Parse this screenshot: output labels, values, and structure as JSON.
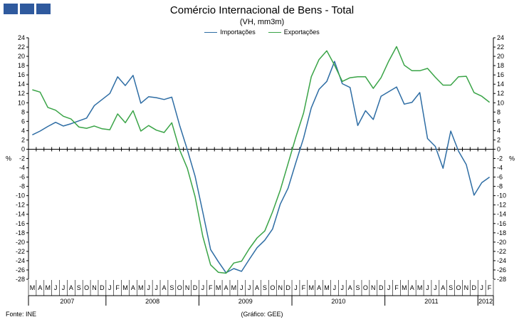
{
  "header": {
    "title": "Comércio Internacional de Bens - Total",
    "subtitle": "(VH, mm3m)"
  },
  "footer": {
    "source": "Fonte: INE",
    "credit": "(Gráfico: GEE)"
  },
  "colors": {
    "importacoes": "#2e6da4",
    "exportacoes": "#3aa447",
    "logo": "#2f5a9e"
  },
  "chart_data": {
    "type": "line",
    "title": "Comércio Internacional de Bens - Total",
    "subtitle": "(VH, mm3m)",
    "ylabel": "%",
    "ylim": [
      -28,
      24
    ],
    "yticks": [
      24,
      22,
      20,
      18,
      16,
      14,
      12,
      10,
      8,
      6,
      4,
      2,
      0,
      -2,
      -4,
      -6,
      -8,
      -10,
      -12,
      -14,
      -16,
      -18,
      -20,
      -22,
      -24,
      -26,
      -28
    ],
    "grid": false,
    "legend_position": "top-center",
    "month_labels": [
      "M",
      "A",
      "M",
      "J",
      "J",
      "A",
      "S",
      "O",
      "N",
      "D",
      "J",
      "F",
      "M",
      "A",
      "M",
      "J",
      "J",
      "A",
      "S",
      "O",
      "N",
      "D",
      "J",
      "F",
      "M",
      "A",
      "M",
      "J",
      "J",
      "A",
      "S",
      "O",
      "N",
      "D",
      "J",
      "F",
      "M",
      "A",
      "M",
      "J",
      "J",
      "A",
      "S",
      "O",
      "N",
      "D",
      "J",
      "F",
      "M",
      "A",
      "M",
      "J",
      "J",
      "A",
      "S",
      "O",
      "N",
      "D",
      "J",
      "F"
    ],
    "years": [
      {
        "label": "2007",
        "start": 0,
        "end": 9
      },
      {
        "label": "2008",
        "start": 10,
        "end": 21
      },
      {
        "label": "2009",
        "start": 22,
        "end": 33
      },
      {
        "label": "2010",
        "start": 34,
        "end": 45
      },
      {
        "label": "2011",
        "start": 46,
        "end": 57
      },
      {
        "label": "2012",
        "start": 58,
        "end": 59
      }
    ],
    "series": [
      {
        "name": "Importações",
        "color": "#2e6da4",
        "values": [
          3.1,
          3.9,
          4.9,
          5.8,
          5.0,
          5.5,
          6.1,
          6.7,
          9.4,
          10.7,
          12.0,
          15.6,
          13.7,
          15.9,
          9.9,
          11.3,
          11.1,
          10.7,
          11.2,
          5.2,
          -0.1,
          -5.8,
          -13.6,
          -21.6,
          -24.2,
          -26.6,
          -25.7,
          -26.3,
          -23.7,
          -21.2,
          -19.6,
          -17.2,
          -11.8,
          -8.4,
          -2.9,
          2.4,
          8.9,
          12.9,
          14.6,
          18.9,
          14.1,
          13.3,
          5.1,
          8.3,
          6.4,
          11.4,
          12.4,
          13.4,
          9.7,
          10.1,
          12.2,
          2.3,
          0.6,
          -4.1,
          3.9,
          -0.4,
          -3.3,
          -9.9,
          -7.2,
          -6.0
        ]
      },
      {
        "name": "Exportações",
        "color": "#3aa447",
        "values": [
          12.8,
          12.3,
          9.0,
          8.4,
          7.1,
          6.5,
          4.8,
          4.5,
          5.0,
          4.4,
          4.2,
          7.6,
          5.7,
          8.3,
          3.9,
          5.1,
          4.1,
          3.6,
          5.7,
          -0.1,
          -4.1,
          -10.2,
          -18.8,
          -24.9,
          -26.5,
          -26.7,
          -24.5,
          -24.1,
          -21.4,
          -19.1,
          -17.6,
          -13.5,
          -8.8,
          -3.1,
          2.6,
          7.8,
          15.6,
          19.3,
          21.2,
          18.1,
          14.6,
          15.4,
          15.6,
          15.6,
          13.1,
          15.4,
          19.0,
          22.1,
          18.1,
          16.9,
          16.9,
          17.4,
          15.5,
          13.8,
          13.8,
          15.6,
          15.7,
          12.2,
          11.4,
          10.1
        ]
      }
    ]
  }
}
